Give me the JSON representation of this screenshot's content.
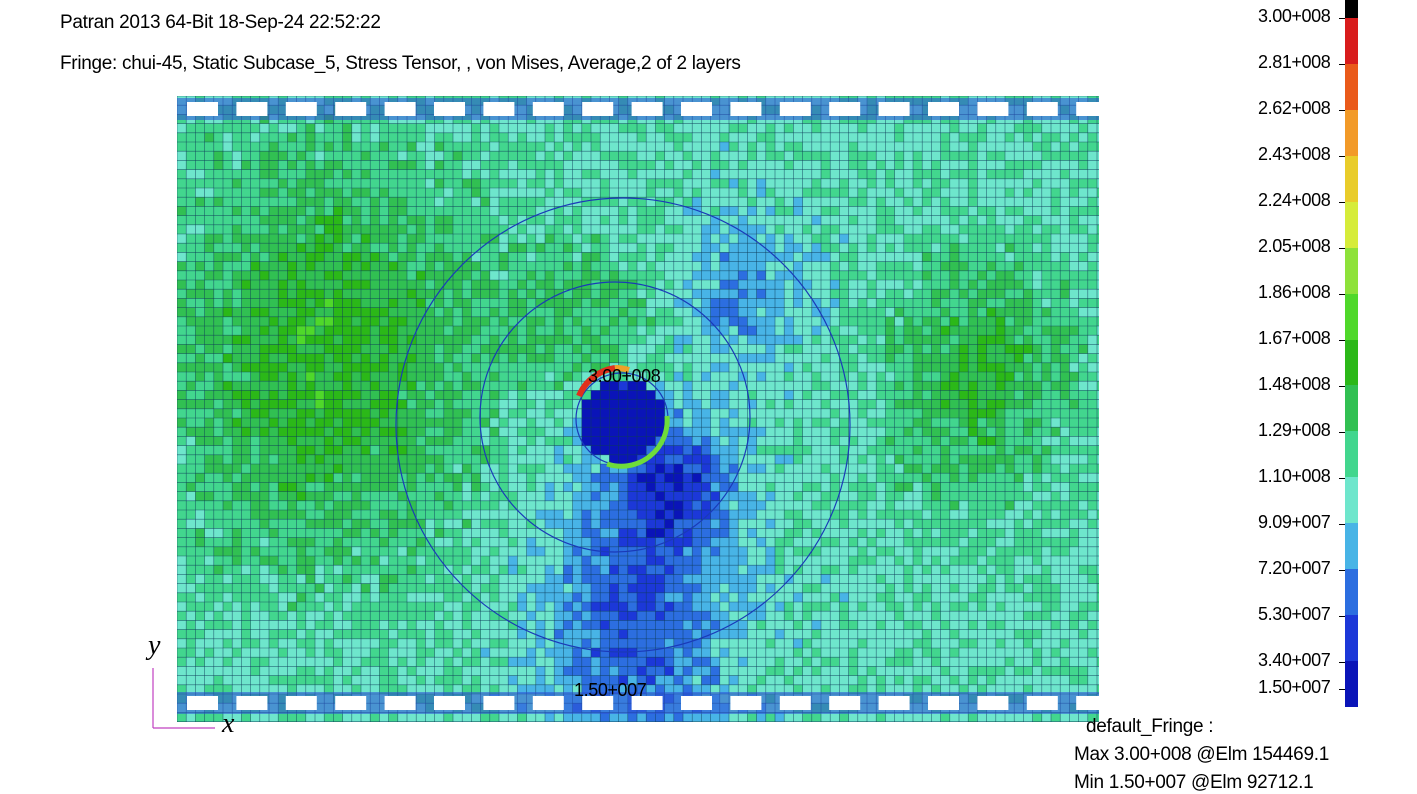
{
  "header": {
    "title": "Patran 2013 64-Bit 18-Sep-24 22:52:22",
    "fringe_description": "Fringe: chui-45, Static Subcase_5, Stress Tensor, , von Mises, Average,2 of 2 layers"
  },
  "legend": {
    "labels": [
      "3.00+008",
      "2.81+008",
      "2.62+008",
      "2.43+008",
      "2.24+008",
      "2.05+008",
      "1.86+008",
      "1.67+008",
      "1.48+008",
      "1.29+008",
      "1.10+008",
      "9.09+007",
      "7.20+007",
      "5.30+007",
      "3.40+007",
      "1.50+007"
    ],
    "colors": [
      "#000000",
      "#d81c1c",
      "#ea5a1a",
      "#f29a28",
      "#e9cc2a",
      "#d6ec3a",
      "#8ee23a",
      "#4fd82a",
      "#2bb818",
      "#31c052",
      "#42d68e",
      "#6ee6cc",
      "#48b4e6",
      "#2c6ee0",
      "#1c38d8",
      "#0a14b8"
    ]
  },
  "markers": {
    "max_label": "3.00+008",
    "min_label": "1.50+007"
  },
  "axes": {
    "x_label": "x",
    "y_label": "y"
  },
  "summary": {
    "title": "default_Fringe :",
    "max": "Max 3.00+008 @Elm 154469.1",
    "min": "Min 1.50+007 @Elm 92712.1"
  }
}
